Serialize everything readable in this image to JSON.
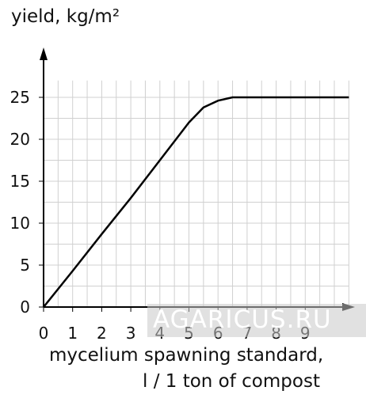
{
  "chart_data": {
    "type": "line",
    "ylabel": "yield, kg/m²",
    "xlabel_line1": "mycelium spawning standard,",
    "xlabel_line2": "l / 1 ton of compost",
    "xticks": [
      "0",
      "1",
      "2",
      "3",
      "4",
      "5",
      "6",
      "7",
      "8",
      "9"
    ],
    "yticks": [
      "0",
      "5",
      "10",
      "15",
      "20",
      "25"
    ],
    "xlim": [
      0,
      10.5
    ],
    "ylim": [
      0,
      28
    ],
    "grid": true,
    "series": [
      {
        "x": [
          0,
          1,
          2,
          3,
          4,
          5,
          5.5,
          6,
          6.5,
          7,
          8,
          9,
          10.5
        ],
        "y": [
          0,
          4.3,
          8.7,
          13.0,
          17.5,
          22.0,
          23.8,
          24.6,
          25.0,
          25.0,
          25.0,
          25.0,
          25.0
        ]
      }
    ],
    "line_color": "#000000",
    "grid_color": "#d0d0d0"
  },
  "watermark": "AGARICUS.RU"
}
